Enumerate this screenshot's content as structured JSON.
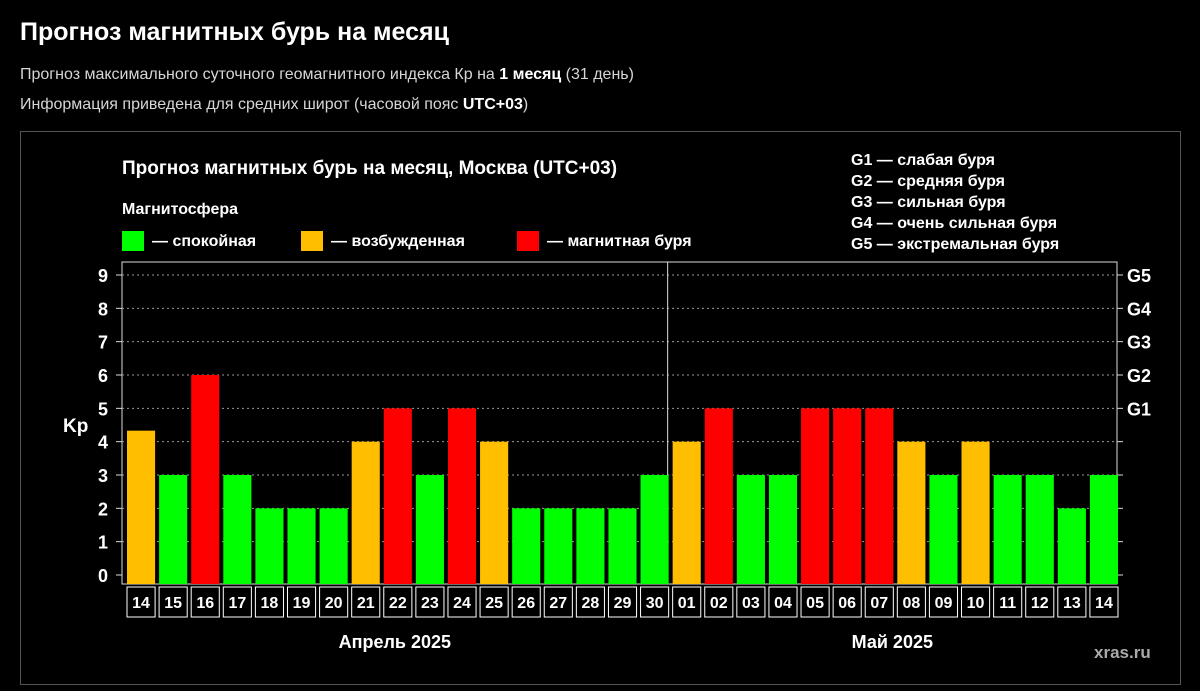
{
  "page": {
    "title": "Прогноз магнитных бурь на месяц",
    "subtitle1": {
      "pre": "Прогноз максимального суточного геомагнитного индекса Кр на ",
      "bold": "1 месяц",
      "post": " (31 день)"
    },
    "subtitle2": {
      "pre": "Информация приведена для средних широт (часовой пояс ",
      "bold": "UTC+03",
      "post": ")"
    }
  },
  "watermark": "xras.ru",
  "colors": {
    "calm": "#00ff00",
    "excited": "#ffbf00",
    "storm": "#ff0000",
    "background": "#000000"
  },
  "chart_data": {
    "type": "bar",
    "title": "Прогноз магнитных бурь на месяц, Москва (UTC+03)",
    "ylabel": "Kp",
    "ylim": [
      0,
      9
    ],
    "yticks": [
      "0",
      "1",
      "2",
      "3",
      "4",
      "5",
      "6",
      "7",
      "8",
      "9"
    ],
    "grid": true,
    "legend": {
      "title": "Магнитосфера",
      "items": [
        {
          "key": "calm",
          "label": "— спокойная"
        },
        {
          "key": "excited",
          "label": "— возбужденная"
        },
        {
          "key": "storm",
          "label": "— магнитная буря"
        }
      ]
    },
    "g_scale_legend": [
      "G1 — слабая буря",
      "G2 — средняя буря",
      "G3 — сильная буря",
      "G4 — очень сильная буря",
      "G5 — экстремальная буря"
    ],
    "right_axis": [
      {
        "label": "G1",
        "kp": 5
      },
      {
        "label": "G2",
        "kp": 6
      },
      {
        "label": "G3",
        "kp": 7
      },
      {
        "label": "G4",
        "kp": 8
      },
      {
        "label": "G5",
        "kp": 9
      }
    ],
    "months": [
      {
        "label": "Апрель 2025",
        "days": 17
      },
      {
        "label": "Май 2025",
        "days": 14
      }
    ],
    "categories": [
      "14",
      "15",
      "16",
      "17",
      "18",
      "19",
      "20",
      "21",
      "22",
      "23",
      "24",
      "25",
      "26",
      "27",
      "28",
      "29",
      "30",
      "01",
      "02",
      "03",
      "04",
      "05",
      "06",
      "07",
      "08",
      "09",
      "10",
      "11",
      "12",
      "13",
      "14"
    ],
    "values": [
      4.33,
      3,
      6,
      3,
      2,
      2,
      2,
      4,
      5,
      3,
      5,
      4,
      2,
      2,
      2,
      2,
      3,
      4,
      5,
      3,
      3,
      5,
      5,
      5,
      4,
      3,
      4,
      3,
      3,
      2,
      3
    ],
    "levels": [
      "excited",
      "calm",
      "storm",
      "calm",
      "calm",
      "calm",
      "calm",
      "excited",
      "storm",
      "calm",
      "storm",
      "excited",
      "calm",
      "calm",
      "calm",
      "calm",
      "calm",
      "excited",
      "storm",
      "calm",
      "calm",
      "storm",
      "storm",
      "storm",
      "excited",
      "calm",
      "excited",
      "calm",
      "calm",
      "calm",
      "calm"
    ]
  }
}
